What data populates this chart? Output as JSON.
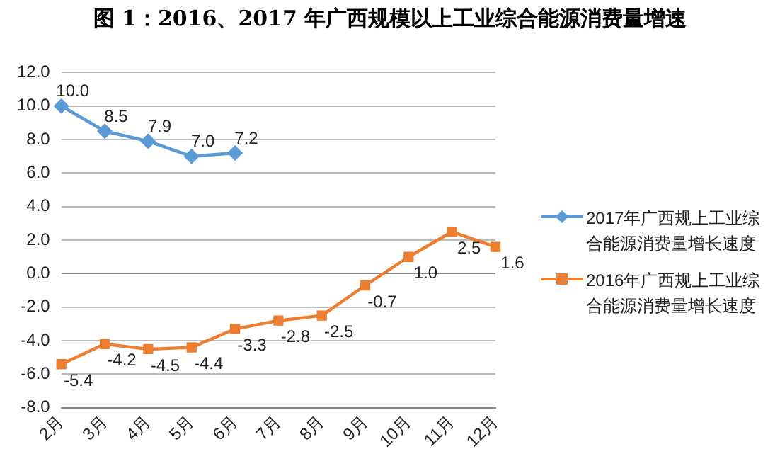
{
  "chart_data": {
    "type": "line",
    "title": "图 1：2016、2017 年广西规模以上工业综合能源消费量增速",
    "categories": [
      "2月",
      "3月",
      "4月",
      "5月",
      "6月",
      "7月",
      "8月",
      "9月",
      "10月",
      "11月",
      "12月"
    ],
    "series": [
      {
        "name": "2017年广西规上工业综合能源消费量增长速度",
        "color": "#5b9bd5",
        "marker": "diamond",
        "values": [
          10.0,
          8.5,
          7.9,
          7.0,
          7.2,
          null,
          null,
          null,
          null,
          null,
          null
        ],
        "value_labels": [
          "10.0",
          "8.5",
          "7.9",
          "7.0",
          "7.2",
          null,
          null,
          null,
          null,
          null,
          null
        ]
      },
      {
        "name": "2016年广西规上工业综合能源消费量增长速度",
        "color": "#ed7d31",
        "marker": "square",
        "values": [
          -5.4,
          -4.2,
          -4.5,
          -4.4,
          -3.3,
          -2.8,
          -2.5,
          -0.7,
          1.0,
          2.5,
          1.6
        ],
        "value_labels": [
          "-5.4",
          "-4.2",
          "-4.5",
          "-4.4",
          "-3.3",
          "-2.8",
          "-2.5",
          "-0.7",
          "1.0",
          "2.5",
          "1.6"
        ]
      }
    ],
    "ylim": [
      -8,
      12
    ],
    "yticks": [
      {
        "value": -8,
        "label": "-8.0"
      },
      {
        "value": -6,
        "label": "-6.0"
      },
      {
        "value": -4,
        "label": "-4.0"
      },
      {
        "value": -2,
        "label": "-2.0"
      },
      {
        "value": 0,
        "label": "0.0"
      },
      {
        "value": 2,
        "label": "2.0"
      },
      {
        "value": 4,
        "label": "4.0"
      },
      {
        "value": 6,
        "label": "6.0"
      },
      {
        "value": 8,
        "label": "8.0"
      },
      {
        "value": 10,
        "label": "10.0"
      },
      {
        "value": 12,
        "label": "12.0"
      }
    ],
    "grid": "y",
    "legend": "right"
  }
}
